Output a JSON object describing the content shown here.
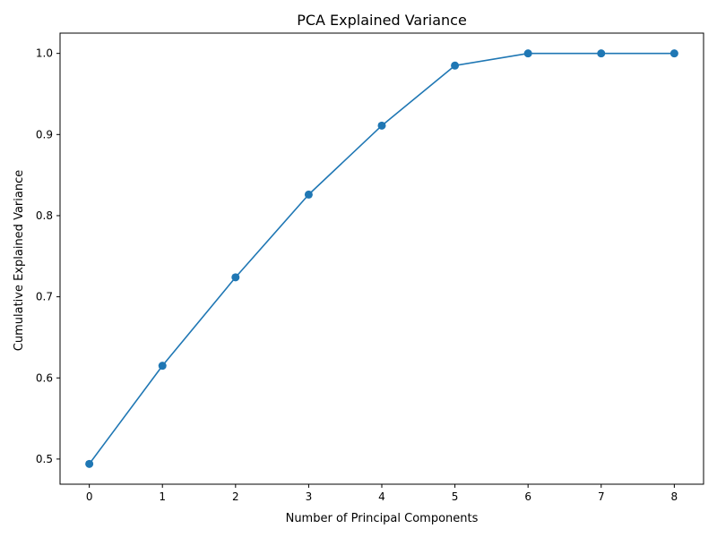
{
  "chart_data": {
    "type": "line",
    "title": "PCA Explained Variance",
    "xlabel": "Number of Principal Components",
    "ylabel": "Cumulative Explained Variance",
    "x": [
      0,
      1,
      2,
      3,
      4,
      5,
      6,
      7,
      8
    ],
    "series": [
      {
        "values": [
          0.494,
          0.615,
          0.724,
          0.826,
          0.911,
          0.985,
          1.0,
          1.0,
          1.0
        ]
      }
    ],
    "xlim": [
      -0.4,
      8.4
    ],
    "ylim": [
      0.469,
      1.025
    ],
    "xticks": [
      "0",
      "1",
      "2",
      "3",
      "4",
      "5",
      "6",
      "7",
      "8"
    ],
    "yticks": [
      "0.5",
      "0.6",
      "0.7",
      "0.8",
      "0.9",
      "1.0"
    ],
    "marker": "circle",
    "color": "#1f77b4",
    "grid": false,
    "legend": false
  }
}
